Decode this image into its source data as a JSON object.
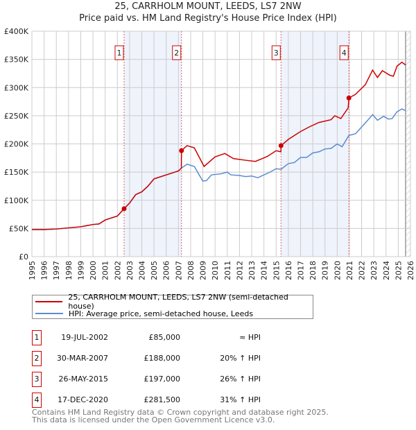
{
  "chart_data": {
    "type": "line",
    "title": "25, CARRHOLM MOUNT, LEEDS, LS7 2NW",
    "subtitle": "Price paid vs. HM Land Registry's House Price Index (HPI)",
    "xlim": [
      1995,
      2026
    ],
    "ylim": [
      0,
      400000
    ],
    "y_ticks": [
      {
        "v": 0,
        "label": "£0"
      },
      {
        "v": 50000,
        "label": "£50K"
      },
      {
        "v": 100000,
        "label": "£100K"
      },
      {
        "v": 150000,
        "label": "£150K"
      },
      {
        "v": 200000,
        "label": "£200K"
      },
      {
        "v": 250000,
        "label": "£250K"
      },
      {
        "v": 300000,
        "label": "£300K"
      },
      {
        "v": 350000,
        "label": "£350K"
      },
      {
        "v": 400000,
        "label": "£400K"
      }
    ],
    "x_ticks": [
      "1995",
      "1996",
      "1997",
      "1998",
      "1999",
      "2000",
      "2001",
      "2002",
      "2003",
      "2004",
      "2005",
      "2006",
      "2007",
      "2008",
      "2009",
      "2010",
      "2011",
      "2012",
      "2013",
      "2014",
      "2015",
      "2016",
      "2017",
      "2018",
      "2019",
      "2020",
      "2021",
      "2022",
      "2023",
      "2024",
      "2025",
      "2026"
    ],
    "grid": true,
    "forecast_from": 2025.6,
    "shaded_ranges": [
      [
        2002.55,
        2007.25
      ],
      [
        2015.4,
        2020.96
      ]
    ],
    "series": [
      {
        "name": "25, CARRHOLM MOUNT, LEEDS, LS7 2NW (semi-detached house)",
        "color": "#cc0000",
        "x": [
          1995,
          1996,
          1997,
          1998,
          1999,
          2000,
          2000.5,
          2001,
          2002,
          2002.55,
          2003,
          2003.5,
          2004,
          2004.5,
          2005,
          2006,
          2007,
          2007.24,
          2007.25,
          2007.7,
          2008.3,
          2009.1,
          2010,
          2010.8,
          2011.5,
          2012.5,
          2013.3,
          2014.3,
          2015.0,
          2015.39,
          2015.4,
          2016,
          2017,
          2017.7,
          2018.5,
          2019.5,
          2019.8,
          2020.3,
          2020.9,
          2020.96,
          2021.5,
          2022.3,
          2022.9,
          2023.3,
          2023.7,
          2024.3,
          2024.6,
          2024.9,
          2025.3,
          2025.6
        ],
        "y": [
          48000,
          48000,
          49000,
          51000,
          53000,
          57000,
          58000,
          65000,
          72000,
          85000,
          95000,
          110000,
          115000,
          125000,
          138000,
          145000,
          152000,
          157000,
          188000,
          197000,
          193000,
          160000,
          177000,
          183000,
          174000,
          171000,
          169000,
          178000,
          188000,
          186000,
          197000,
          208000,
          222000,
          230000,
          238000,
          243000,
          250000,
          245000,
          264000,
          281500,
          288000,
          305000,
          331000,
          318000,
          330000,
          322000,
          320000,
          338000,
          345000,
          340000
        ]
      },
      {
        "name": "HPI: Average price, semi-detached house, Leeds",
        "color": "#5b8bd0",
        "x": [
          1995,
          1996,
          1997,
          1998,
          1999,
          2000,
          2000.5,
          2001,
          2002,
          2002.55,
          2003,
          2003.5,
          2004,
          2004.5,
          2005,
          2006,
          2007,
          2007.25,
          2007.7,
          2008.3,
          2008.7,
          2009.0,
          2009.3,
          2009.7,
          2010.5,
          2011,
          2011.3,
          2012,
          2012.5,
          2013,
          2013.5,
          2014,
          2014.5,
          2015,
          2015.4,
          2016,
          2016.5,
          2017,
          2017.5,
          2018,
          2018.5,
          2019,
          2019.5,
          2020,
          2020.4,
          2020.96,
          2021.5,
          2022,
          2022.5,
          2022.9,
          2023.3,
          2023.8,
          2024.2,
          2024.5,
          2024.9,
          2025.3,
          2025.6
        ],
        "y": [
          48000,
          48000,
          49000,
          51000,
          53000,
          57000,
          58000,
          65000,
          72000,
          85000,
          95000,
          110000,
          115000,
          125000,
          138000,
          145000,
          152000,
          157000,
          164000,
          160000,
          145000,
          134000,
          135000,
          145000,
          147000,
          150000,
          145000,
          144000,
          142000,
          143000,
          140000,
          145000,
          150000,
          156000,
          155000,
          165000,
          167000,
          176000,
          176000,
          184000,
          186000,
          191000,
          192000,
          200000,
          195000,
          215000,
          218000,
          230000,
          242000,
          252000,
          242000,
          249000,
          244000,
          245000,
          257000,
          262000,
          259000
        ]
      }
    ],
    "transactions": [
      {
        "n": "1",
        "x": 2002.55,
        "price": 85000
      },
      {
        "n": "2",
        "x": 2007.25,
        "price": 188000
      },
      {
        "n": "3",
        "x": 2015.4,
        "price": 197000
      },
      {
        "n": "4",
        "x": 2020.96,
        "price": 281500
      }
    ]
  },
  "legend": {
    "property": "25, CARRHOLM MOUNT, LEEDS, LS7 2NW (semi-detached house)",
    "hpi": "HPI: Average price, semi-detached house, Leeds"
  },
  "table": [
    {
      "n": "1",
      "date": "19-JUL-2002",
      "price": "£85,000",
      "hpi": "≈ HPI"
    },
    {
      "n": "2",
      "date": "30-MAR-2007",
      "price": "£188,000",
      "hpi": "20% ↑ HPI"
    },
    {
      "n": "3",
      "date": "26-MAY-2015",
      "price": "£197,000",
      "hpi": "26% ↑ HPI"
    },
    {
      "n": "4",
      "date": "17-DEC-2020",
      "price": "£281,500",
      "hpi": "31% ↑ HPI"
    }
  ],
  "footer": {
    "line1": "Contains HM Land Registry data © Crown copyright and database right 2025.",
    "line2": "This data is licensed under the Open Government Licence v3.0."
  }
}
